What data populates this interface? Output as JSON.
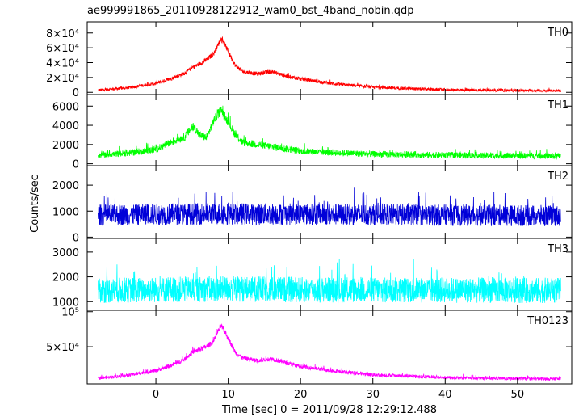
{
  "chart_data": {
    "type": "line",
    "title": "ae999991865_20110928122912_wam0_bst_4band_nobin.qdp",
    "xlabel": "Time [sec] 0 = 2011/09/28 12:29:12.488",
    "ylabel": "Counts/sec",
    "xlim": [
      -9.5,
      57.5
    ],
    "x_ticks": [
      0,
      10,
      20,
      30,
      40,
      50
    ],
    "x_data_range": [
      -8,
      56
    ],
    "grid": false,
    "panels": [
      {
        "label": "TH0",
        "color": "#ff0000",
        "ylim": [
          -3000,
          95000
        ],
        "y_ticks": [
          0,
          20000,
          40000,
          60000,
          80000
        ],
        "y_tick_labels": [
          "0",
          "2×10⁴",
          "4×10⁴",
          "6×10⁴",
          "8×10⁴"
        ],
        "profile": {
          "x": [
            -8,
            -4,
            0,
            2,
            4,
            5,
            6,
            7,
            8,
            8.5,
            9,
            9.5,
            10,
            11,
            12,
            14,
            16,
            18,
            20,
            25,
            30,
            35,
            40,
            50,
            56
          ],
          "y": [
            3000,
            6000,
            12000,
            18000,
            26000,
            33000,
            38000,
            44000,
            52000,
            62000,
            72000,
            65000,
            55000,
            36000,
            28000,
            25000,
            28000,
            22000,
            18000,
            11000,
            7000,
            5000,
            3500,
            2500,
            2000
          ]
        },
        "noise_amplitude": 3500
      },
      {
        "label": "TH1",
        "color": "#00ff00",
        "ylim": [
          -200,
          7200
        ],
        "y_ticks": [
          0,
          2000,
          4000,
          6000
        ],
        "y_tick_labels": [
          "0",
          "2000",
          "4000",
          "6000"
        ],
        "profile": {
          "x": [
            -8,
            -4,
            0,
            2,
            4,
            5,
            5.5,
            6,
            7,
            8,
            9,
            10,
            11,
            12,
            16,
            20,
            30,
            40,
            56
          ],
          "y": [
            900,
            1100,
            1500,
            2200,
            2800,
            3800,
            3600,
            3000,
            2700,
            4500,
            5600,
            4300,
            3000,
            2200,
            1800,
            1300,
            1000,
            900,
            800
          ]
        },
        "noise_amplitude": 500
      },
      {
        "label": "TH2",
        "color": "#0000d8",
        "ylim": [
          -50,
          2750
        ],
        "y_ticks": [
          0,
          1000,
          2000
        ],
        "y_tick_labels": [
          "0",
          "1000",
          "2000"
        ],
        "profile": {
          "x": [
            -8,
            0,
            10,
            20,
            56
          ],
          "y": [
            850,
            880,
            900,
            880,
            820
          ]
        },
        "noise_amplitude": 420
      },
      {
        "label": "TH3",
        "color": "#00ffff",
        "ylim": [
          650,
          3550
        ],
        "y_ticks": [
          1000,
          2000,
          3000
        ],
        "y_tick_labels": [
          "1000",
          "2000",
          "3000"
        ],
        "profile": {
          "x": [
            -8,
            0,
            10,
            20,
            56
          ],
          "y": [
            1450,
            1480,
            1520,
            1480,
            1450
          ]
        },
        "noise_amplitude": 520
      },
      {
        "label": "TH0123",
        "color": "#ff00ff",
        "ylim": [
          -3000,
          102000
        ],
        "y_ticks": [
          50000,
          100000
        ],
        "y_tick_labels": [
          "5×10⁴",
          "10⁵"
        ],
        "profile": {
          "x": [
            -8,
            -4,
            0,
            2,
            4,
            5,
            6,
            7,
            8,
            8.5,
            9,
            9.5,
            10,
            11,
            12,
            14,
            16,
            18,
            20,
            25,
            30,
            35,
            40,
            50,
            56
          ],
          "y": [
            5000,
            9000,
            16000,
            23000,
            32000,
            42000,
            46000,
            50000,
            58000,
            70000,
            80000,
            72000,
            62000,
            42000,
            34000,
            30000,
            33000,
            27000,
            22000,
            15000,
            10000,
            8000,
            6000,
            4500,
            4000
          ]
        },
        "noise_amplitude": 4000
      }
    ]
  }
}
